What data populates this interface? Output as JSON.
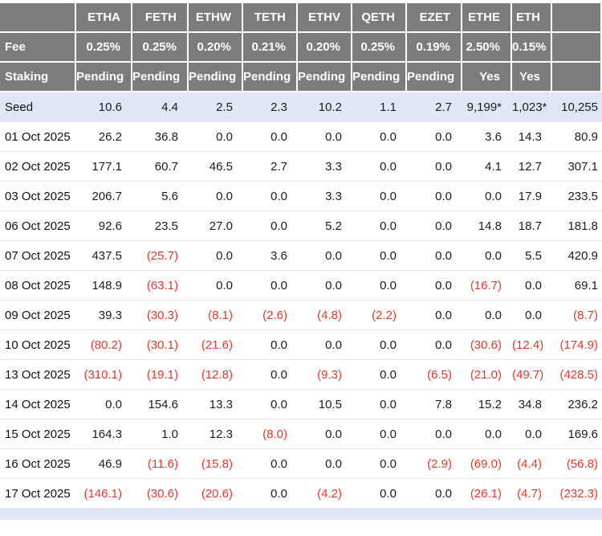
{
  "chart_data": {
    "type": "table",
    "description": "Ethereum ETF daily flow table (values in USD millions); negative flows shown in parentheses and red",
    "columns": [
      "",
      "ETHA",
      "FETH",
      "ETHW",
      "TETH",
      "ETHV",
      "QETH",
      "EZET",
      "ETHE",
      "ETH",
      ""
    ],
    "fee_row": {
      "label": "Fee",
      "values": [
        "0.25%",
        "0.25%",
        "0.20%",
        "0.21%",
        "0.20%",
        "0.25%",
        "0.19%",
        "2.50%",
        "0.15%",
        ""
      ]
    },
    "staking_row": {
      "label": "Staking",
      "values": [
        "Pending",
        "Pending",
        "Pending",
        "Pending",
        "Pending",
        "Pending",
        "Pending",
        "Yes",
        "Yes",
        ""
      ]
    },
    "rows": [
      {
        "label": "Seed",
        "highlight": true,
        "values": [
          "10.6",
          "4.4",
          "2.5",
          "2.3",
          "10.2",
          "1.1",
          "2.7",
          "9,199*",
          "1,023*",
          "10,255"
        ]
      },
      {
        "label": "01 Oct 2025",
        "highlight": false,
        "values": [
          "26.2",
          "36.8",
          "0.0",
          "0.0",
          "0.0",
          "0.0",
          "0.0",
          "3.6",
          "14.3",
          "80.9"
        ]
      },
      {
        "label": "02 Oct 2025",
        "highlight": false,
        "values": [
          "177.1",
          "60.7",
          "46.5",
          "2.7",
          "3.3",
          "0.0",
          "0.0",
          "4.1",
          "12.7",
          "307.1"
        ]
      },
      {
        "label": "03 Oct 2025",
        "highlight": false,
        "values": [
          "206.7",
          "5.6",
          "0.0",
          "0.0",
          "3.3",
          "0.0",
          "0.0",
          "0.0",
          "17.9",
          "233.5"
        ]
      },
      {
        "label": "06 Oct 2025",
        "highlight": false,
        "values": [
          "92.6",
          "23.5",
          "27.0",
          "0.0",
          "5.2",
          "0.0",
          "0.0",
          "14.8",
          "18.7",
          "181.8"
        ]
      },
      {
        "label": "07 Oct 2025",
        "highlight": false,
        "values": [
          "437.5",
          "(25.7)",
          "0.0",
          "3.6",
          "0.0",
          "0.0",
          "0.0",
          "0.0",
          "5.5",
          "420.9"
        ]
      },
      {
        "label": "08 Oct 2025",
        "highlight": false,
        "values": [
          "148.9",
          "(63.1)",
          "0.0",
          "0.0",
          "0.0",
          "0.0",
          "0.0",
          "(16.7)",
          "0.0",
          "69.1"
        ]
      },
      {
        "label": "09 Oct 2025",
        "highlight": false,
        "values": [
          "39.3",
          "(30.3)",
          "(8.1)",
          "(2.6)",
          "(4.8)",
          "(2.2)",
          "0.0",
          "0.0",
          "0.0",
          "(8.7)"
        ]
      },
      {
        "label": "10 Oct 2025",
        "highlight": false,
        "values": [
          "(80.2)",
          "(30.1)",
          "(21.6)",
          "0.0",
          "0.0",
          "0.0",
          "0.0",
          "(30.6)",
          "(12.4)",
          "(174.9)"
        ]
      },
      {
        "label": "13 Oct 2025",
        "highlight": false,
        "values": [
          "(310.1)",
          "(19.1)",
          "(12.8)",
          "0.0",
          "(9.3)",
          "0.0",
          "(6.5)",
          "(21.0)",
          "(49.7)",
          "(428.5)"
        ]
      },
      {
        "label": "14 Oct 2025",
        "highlight": false,
        "values": [
          "0.0",
          "154.6",
          "13.3",
          "0.0",
          "10.5",
          "0.0",
          "7.8",
          "15.2",
          "34.8",
          "236.2"
        ]
      },
      {
        "label": "15 Oct 2025",
        "highlight": false,
        "values": [
          "164.3",
          "1.0",
          "12.3",
          "(8.0)",
          "0.0",
          "0.0",
          "0.0",
          "0.0",
          "0.0",
          "169.6"
        ]
      },
      {
        "label": "16 Oct 2025",
        "highlight": false,
        "values": [
          "46.9",
          "(11.6)",
          "(15.8)",
          "0.0",
          "0.0",
          "0.0",
          "(2.9)",
          "(69.0)",
          "(4.4)",
          "(56.8)"
        ]
      },
      {
        "label": "17 Oct 2025",
        "highlight": false,
        "values": [
          "(146.1)",
          "(30.6)",
          "(20.6)",
          "0.0",
          "(4.2)",
          "0.0",
          "0.0",
          "(26.1)",
          "(4.7)",
          "(232.3)"
        ]
      }
    ]
  },
  "colors": {
    "header_bg": "#7c7c7c",
    "header_text": "#ffffff",
    "seed_row_bg": "#e2e7f7",
    "negative_text": "#e8372b",
    "gridline": "#e5e5e5"
  }
}
